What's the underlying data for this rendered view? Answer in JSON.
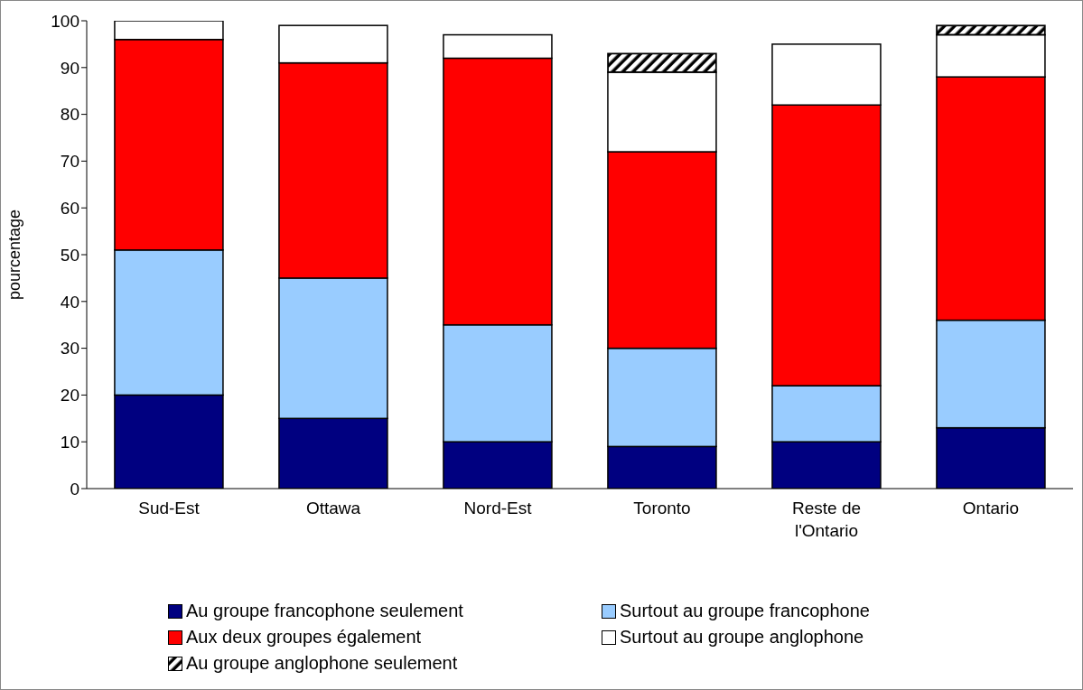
{
  "chart_data": {
    "type": "bar",
    "stacked": true,
    "ylabel": "pourcentage",
    "categories": [
      "Sud-Est",
      "Ottawa",
      "Nord-Est",
      "Toronto",
      "Reste de l'Ontario",
      "Ontario"
    ],
    "series": [
      {
        "name": "Au groupe francophone seulement",
        "color": "#000080",
        "values": [
          20,
          15,
          10,
          9,
          10,
          13
        ]
      },
      {
        "name": "Surtout au groupe francophone",
        "color": "#99ccff",
        "values": [
          31,
          30,
          25,
          21,
          12,
          23
        ]
      },
      {
        "name": "Aux deux groupes également",
        "color": "#ff0000",
        "values": [
          45,
          46,
          57,
          42,
          60,
          52
        ]
      },
      {
        "name": "Surtout au groupe anglophone",
        "color": "#ffffff",
        "values": [
          4,
          8,
          5,
          17,
          13,
          9
        ]
      },
      {
        "name": "Au groupe anglophone seulement",
        "color": "#000000",
        "values": [
          null,
          null,
          null,
          4,
          null,
          2
        ]
      }
    ],
    "ylim": [
      0,
      100
    ],
    "yticks": [
      0,
      10,
      20,
      30,
      40,
      50,
      60,
      70,
      80,
      90,
      100
    ],
    "grid": false,
    "legend": "bottom"
  }
}
